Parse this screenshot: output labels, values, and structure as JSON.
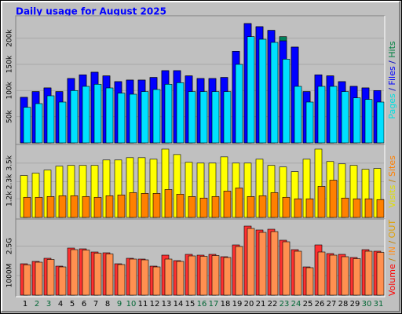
{
  "title": "Daily usage for August 2025",
  "categories": [
    "1",
    "2",
    "3",
    "4",
    "5",
    "6",
    "7",
    "8",
    "9",
    "10",
    "11",
    "12",
    "13",
    "14",
    "15",
    "16",
    "17",
    "18",
    "19",
    "20",
    "21",
    "22",
    "23",
    "24",
    "25",
    "26",
    "27",
    "28",
    "29",
    "30",
    "31"
  ],
  "category_colors": [
    "#000000",
    "#006633",
    "#006633",
    "#000000",
    "#000000",
    "#000000",
    "#000000",
    "#000000",
    "#006633",
    "#006633",
    "#000000",
    "#000000",
    "#000000",
    "#000000",
    "#000000",
    "#006633",
    "#006633",
    "#000000",
    "#000000",
    "#000000",
    "#000000",
    "#000000",
    "#006633",
    "#006633",
    "#000000",
    "#000000",
    "#000000",
    "#000000",
    "#000000",
    "#006633",
    "#006633"
  ],
  "chart_data": [
    {
      "type": "bar",
      "ylim": [
        0,
        240000
      ],
      "yticks": [
        {
          "value": 50000,
          "label": "50k"
        },
        {
          "value": 100000,
          "label": "100k"
        },
        {
          "value": 150000,
          "label": "150k"
        },
        {
          "value": 200000,
          "label": "200k"
        }
      ],
      "side_label": [
        {
          "text": "Pages",
          "color": "#00e0e0"
        },
        {
          "text": " / ",
          "color": "#0000c0"
        },
        {
          "text": "Files",
          "color": "#0000ff"
        },
        {
          "text": " / ",
          "color": "#0000c0"
        },
        {
          "text": "Hits",
          "color": "#008040"
        }
      ],
      "series": [
        {
          "name": "Hits",
          "color": "#00805c",
          "values": [
            87000,
            98000,
            105000,
            98000,
            123000,
            130000,
            135000,
            128000,
            117000,
            120000,
            120000,
            125000,
            138000,
            138000,
            128000,
            123000,
            123000,
            125000,
            175000,
            228000,
            222000,
            215000,
            203000,
            183000,
            98000,
            130000,
            128000,
            117000,
            108000,
            105000,
            100000
          ]
        },
        {
          "name": "Files",
          "color": "#0000ff",
          "values": [
            87000,
            98000,
            105000,
            98000,
            123000,
            130000,
            135000,
            128000,
            117000,
            120000,
            120000,
            125000,
            138000,
            138000,
            128000,
            123000,
            123000,
            125000,
            175000,
            228000,
            222000,
            215000,
            195000,
            183000,
            98000,
            130000,
            128000,
            117000,
            108000,
            105000,
            100000
          ]
        },
        {
          "name": "Pages",
          "color": "#00e0ff",
          "values": [
            68000,
            75000,
            90000,
            78000,
            100000,
            108000,
            112000,
            105000,
            95000,
            93000,
            98000,
            102000,
            112000,
            115000,
            98000,
            98000,
            98000,
            98000,
            150000,
            203000,
            198000,
            192000,
            160000,
            108000,
            78000,
            108000,
            108000,
            98000,
            86000,
            83000,
            78000
          ]
        }
      ]
    },
    {
      "type": "bar",
      "ylim": [
        0,
        4600
      ],
      "yticks": [
        {
          "value": 1200,
          "label": "1.2k"
        },
        {
          "value": 2300,
          "label": "2.3k"
        },
        {
          "value": 3500,
          "label": "3.5k"
        }
      ],
      "side_label": [
        {
          "text": "Visits",
          "color": "#e0e000"
        },
        {
          "text": " / ",
          "color": "#c08000"
        },
        {
          "text": "Sites",
          "color": "#ff8000"
        }
      ],
      "series": [
        {
          "name": "Visits",
          "color": "#ffff00",
          "values": [
            2700,
            2850,
            3050,
            3300,
            3350,
            3350,
            3350,
            3700,
            3700,
            3850,
            3850,
            3750,
            4400,
            4050,
            3550,
            3500,
            3500,
            3900,
            3500,
            3500,
            3750,
            3350,
            3250,
            2950,
            3750,
            4400,
            3600,
            3450,
            3350,
            3100,
            3150
          ]
        },
        {
          "name": "Sites",
          "color": "#ff8000",
          "values": [
            1300,
            1300,
            1350,
            1400,
            1400,
            1350,
            1300,
            1400,
            1450,
            1600,
            1550,
            1550,
            1800,
            1500,
            1350,
            1250,
            1350,
            1700,
            1900,
            1350,
            1400,
            1600,
            1300,
            1200,
            1200,
            2000,
            2400,
            1250,
            1200,
            1200,
            1150
          ]
        }
      ]
    },
    {
      "type": "bar",
      "ylim": [
        0,
        3800
      ],
      "yticks": [
        {
          "value": 1000,
          "label": "1000M"
        },
        {
          "value": 2500,
          "label": "2.5G"
        }
      ],
      "side_label": [
        {
          "text": "Volume",
          "color": "#ff0000"
        },
        {
          "text": " / ",
          "color": "#c08000"
        },
        {
          "text": "IN",
          "color": "#ff9020"
        },
        {
          "text": " / ",
          "color": "#c08000"
        },
        {
          "text": "OUT",
          "color": "#e0a000"
        }
      ],
      "series": [
        {
          "name": "Volume",
          "color": "#ff3030",
          "values": [
            1600,
            1720,
            1880,
            1480,
            2400,
            2360,
            2200,
            2160,
            1600,
            1880,
            1840,
            1480,
            2040,
            1760,
            2080,
            2040,
            2080,
            1960,
            2560,
            3520,
            3320,
            3360,
            2800,
            2320,
            1440,
            2560,
            2120,
            2080,
            1920,
            2320,
            2240
          ]
        },
        {
          "name": "IN",
          "color": "#ff9050",
          "values": [
            1550,
            1680,
            1820,
            1440,
            2320,
            2300,
            2140,
            2100,
            1560,
            1840,
            1800,
            1440,
            1840,
            1720,
            2000,
            1980,
            2020,
            1920,
            2480,
            3400,
            3200,
            3240,
            2720,
            2240,
            1400,
            2200,
            2040,
            1960,
            1860,
            2240,
            2180
          ]
        }
      ]
    }
  ]
}
